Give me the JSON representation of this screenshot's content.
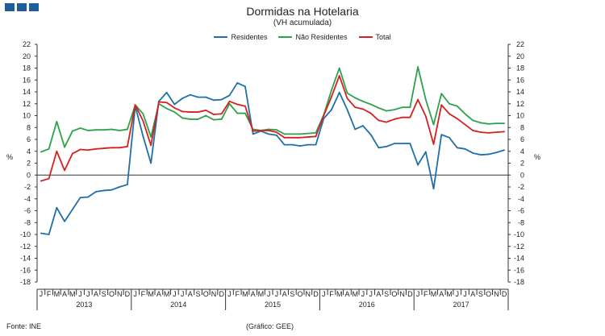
{
  "header": {
    "title": "Dormidas na Hotelaria",
    "subtitle": "(VH acumulada)"
  },
  "footer": {
    "source": "Fonte: INE",
    "credit": "(Gráfico: GEE)"
  },
  "colors": {
    "brand": "#1f5f99"
  },
  "chart_data": {
    "type": "line",
    "title": "Dormidas na Hotelaria",
    "subtitle": "(VH acumulada)",
    "ylabel_left": "%",
    "ylabel_right": "%",
    "ylim": [
      -18,
      22
    ],
    "yticks": [
      -18,
      -16,
      -14,
      -12,
      -10,
      -8,
      -6,
      -4,
      -2,
      0,
      2,
      4,
      6,
      8,
      10,
      12,
      14,
      16,
      18,
      20,
      22
    ],
    "month_labels": [
      "J",
      "F",
      "M",
      "A",
      "M",
      "J",
      "J",
      "A",
      "S",
      "O",
      "N",
      "D"
    ],
    "years": [
      "2013",
      "2014",
      "2015",
      "2016",
      "2017"
    ],
    "legend_position": "top-center",
    "series": [
      {
        "name": "Residentes",
        "color": "#1f6fa8",
        "values": [
          -9.8,
          -10,
          -5.5,
          -7.8,
          -5.8,
          -3.8,
          -3.7,
          -2.8,
          -2.6,
          -2.5,
          -2,
          -1.6,
          11.6,
          6.5,
          2,
          12.4,
          13.9,
          11.9,
          12.9,
          13.5,
          13.1,
          13.1,
          12.6,
          12.7,
          13.4,
          15.5,
          14.9,
          6.9,
          7.4,
          6.9,
          6.7,
          5.1,
          5.1,
          4.9,
          5.1,
          5.1,
          9.5,
          11,
          13.9,
          11,
          7.7,
          8.3,
          6.8,
          4.6,
          4.8,
          5.3,
          5.3,
          5.3,
          1.7,
          3.9,
          -2.3,
          6.8,
          6.3,
          4.6,
          4.4,
          3.7,
          3.4,
          3.5,
          3.8,
          4.2
        ]
      },
      {
        "name": "Não Residentes",
        "color": "#2ca24a",
        "values": [
          3.9,
          4.4,
          9,
          4.7,
          7.4,
          7.9,
          7.5,
          7.6,
          7.6,
          7.7,
          7.5,
          7.7,
          11.8,
          10.3,
          6.4,
          12,
          11.2,
          10.6,
          9.6,
          9.4,
          9.4,
          10,
          9.3,
          9.4,
          12,
          10.4,
          10.4,
          7.7,
          7.5,
          7.7,
          7.6,
          6.9,
          6.9,
          6.9,
          7,
          7.1,
          10.1,
          14.3,
          18,
          13.8,
          13,
          12.4,
          11.9,
          11.3,
          10.8,
          11,
          11.4,
          11.4,
          18.2,
          12.7,
          8.5,
          13.7,
          12,
          11.6,
          10.3,
          9.2,
          8.8,
          8.6,
          8.7,
          8.7
        ]
      },
      {
        "name": "Total",
        "color": "#d62020",
        "values": [
          -1,
          -0.6,
          4,
          0.8,
          3.6,
          4.3,
          4.2,
          4.4,
          4.5,
          4.6,
          4.6,
          4.8,
          11.8,
          9.1,
          5,
          12.3,
          12.2,
          11.3,
          10.7,
          10.6,
          10.6,
          10.9,
          10.2,
          10.3,
          12.4,
          11.9,
          11.6,
          7.4,
          7.5,
          7.5,
          7.2,
          6.3,
          6.3,
          6.3,
          6.4,
          6.5,
          10,
          13.2,
          16.7,
          12.9,
          11.4,
          11.1,
          10.4,
          9.2,
          8.9,
          9.4,
          9.7,
          9.7,
          12.7,
          9.9,
          5.2,
          11.8,
          10.3,
          9.5,
          8.5,
          7.5,
          7.2,
          7.1,
          7.2,
          7.3
        ]
      }
    ]
  }
}
